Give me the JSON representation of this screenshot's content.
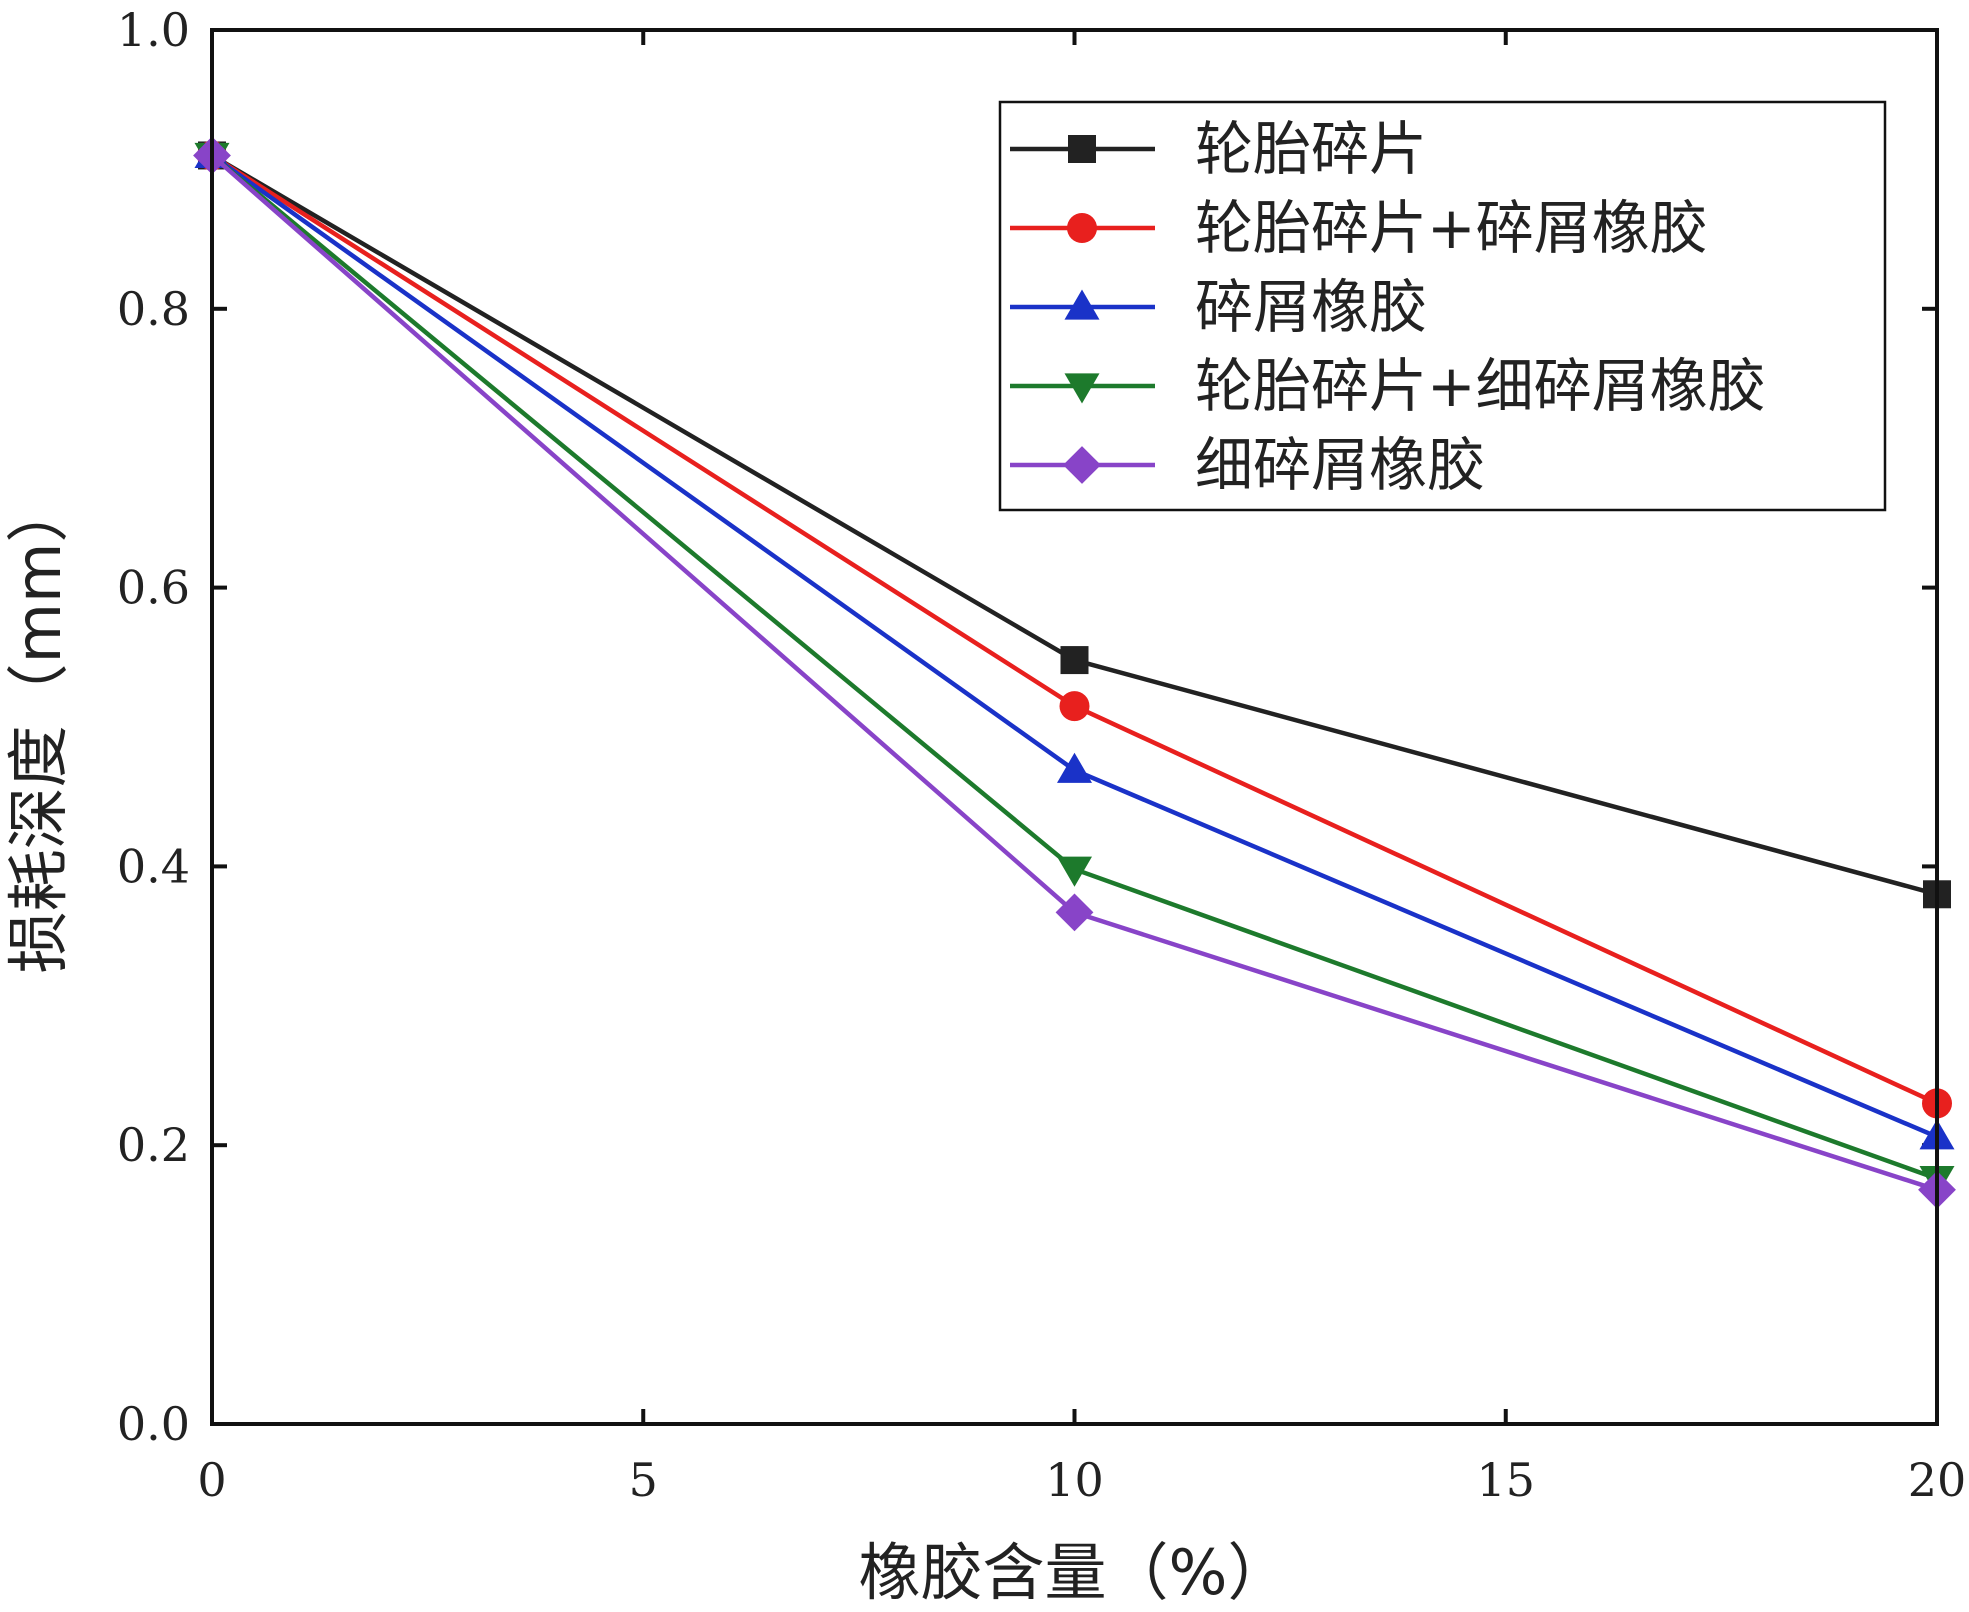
{
  "chart_data": {
    "type": "line",
    "title": "",
    "xlabel": "橡胶含量（%）",
    "ylabel": "损耗深度（mm）",
    "x": [
      0,
      10,
      20
    ],
    "xlim": [
      0,
      20
    ],
    "ylim": [
      0,
      1.0
    ],
    "xticks": [
      0,
      5,
      10,
      15,
      20
    ],
    "yticks": [
      0.0,
      0.2,
      0.4,
      0.6,
      0.8,
      1.0
    ],
    "xtick_labels": [
      "0",
      "5",
      "10",
      "15",
      "20"
    ],
    "ytick_labels": [
      "0.0",
      "0.2",
      "0.4",
      "0.6",
      "0.8",
      "1.0"
    ],
    "grid": false,
    "legend_position": "top-right",
    "series": [
      {
        "name": "轮胎碎片",
        "values": [
          0.91,
          0.548,
          0.38
        ],
        "color": "#222222",
        "marker": "square"
      },
      {
        "name": "轮胎碎片+碎屑橡胶",
        "values": [
          0.91,
          0.515,
          0.23
        ],
        "color": "#e8201e",
        "marker": "circle"
      },
      {
        "name": "碎屑橡胶",
        "values": [
          0.91,
          0.469,
          0.206
        ],
        "color": "#1a32c8",
        "marker": "triangle-up"
      },
      {
        "name": "轮胎碎片+细碎屑橡胶",
        "values": [
          0.91,
          0.398,
          0.176
        ],
        "color": "#1d7a2c",
        "marker": "triangle-down"
      },
      {
        "name": "细碎屑橡胶",
        "values": [
          0.91,
          0.367,
          0.168
        ],
        "color": "#8844c8",
        "marker": "diamond"
      }
    ]
  }
}
